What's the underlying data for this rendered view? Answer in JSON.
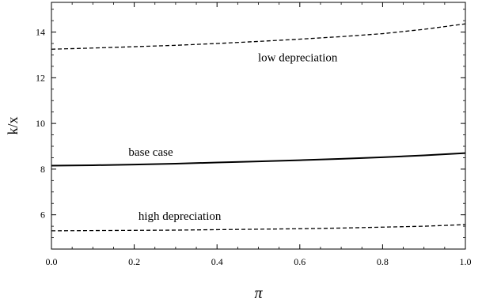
{
  "chart_data": {
    "type": "line",
    "xlabel": "π",
    "ylabel": "k/x",
    "xlim": [
      0,
      1
    ],
    "ylim": [
      4.5,
      15.3
    ],
    "xticks": [
      0.0,
      0.2,
      0.4,
      0.6,
      0.8,
      1.0
    ],
    "xtick_labels": [
      "0.0",
      "0.2",
      "0.4",
      "0.6",
      "0.8",
      "1.0"
    ],
    "yticks": [
      6,
      8,
      10,
      12,
      14
    ],
    "ytick_labels": [
      "6",
      "8",
      "10",
      "12",
      "14"
    ],
    "grid": false,
    "legend": "none",
    "x": [
      0.0,
      0.1,
      0.2,
      0.3,
      0.4,
      0.5,
      0.6,
      0.7,
      0.8,
      0.9,
      1.0
    ],
    "series": [
      {
        "label": "low depreciation",
        "style": "dashed",
        "color": "#000000",
        "values": [
          13.25,
          13.3,
          13.36,
          13.42,
          13.5,
          13.59,
          13.69,
          13.8,
          13.93,
          14.12,
          14.36
        ]
      },
      {
        "label": "base case",
        "style": "solid",
        "color": "#000000",
        "values": [
          8.15,
          8.17,
          8.2,
          8.24,
          8.29,
          8.34,
          8.39,
          8.45,
          8.52,
          8.6,
          8.7
        ]
      },
      {
        "label": "high depreciation",
        "style": "dashed",
        "color": "#000000",
        "values": [
          5.3,
          5.31,
          5.32,
          5.33,
          5.35,
          5.37,
          5.39,
          5.42,
          5.46,
          5.5,
          5.57
        ]
      }
    ],
    "annotations": [
      {
        "text": "low depreciation",
        "x": 0.595,
        "y": 12.9
      },
      {
        "text": "base case",
        "x": 0.24,
        "y": 8.75
      },
      {
        "text": "high depreciation",
        "x": 0.31,
        "y": 5.95
      }
    ]
  }
}
